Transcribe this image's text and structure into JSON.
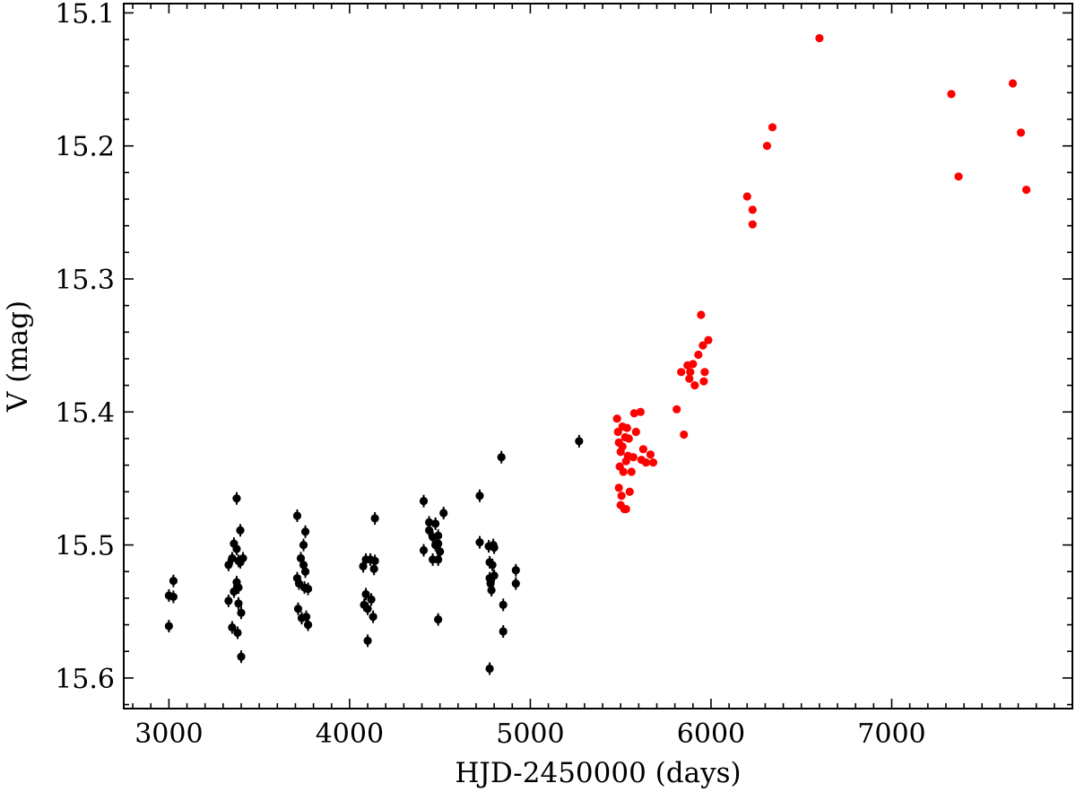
{
  "chart_data": {
    "type": "scatter",
    "xlabel": "HJD-2450000 (days)",
    "ylabel": "V (mag)",
    "xlim": [
      2750,
      8000
    ],
    "ylim": [
      15.623,
      15.093
    ],
    "y_inverted": true,
    "xticks": [
      3000,
      4000,
      5000,
      6000,
      7000
    ],
    "xtick_labels": [
      "3000",
      "4000",
      "5000",
      "6000",
      "7000"
    ],
    "yticks": [
      15.1,
      15.2,
      15.3,
      15.4,
      15.5,
      15.6
    ],
    "ytick_labels": [
      "15.1",
      "15.2",
      "15.3",
      "15.4",
      "15.5",
      "15.6"
    ],
    "grid": false,
    "series": [
      {
        "color": "#000000",
        "points": [
          [
            3000,
            15.538
          ],
          [
            3025,
            15.527
          ],
          [
            3025,
            15.539
          ],
          [
            3000,
            15.561
          ],
          [
            3330,
            15.515
          ],
          [
            3330,
            15.542
          ],
          [
            3350,
            15.51
          ],
          [
            3350,
            15.562
          ],
          [
            3360,
            15.499
          ],
          [
            3360,
            15.535
          ],
          [
            3375,
            15.465
          ],
          [
            3375,
            15.503
          ],
          [
            3375,
            15.528
          ],
          [
            3380,
            15.566
          ],
          [
            3385,
            15.512
          ],
          [
            3385,
            15.532
          ],
          [
            3385,
            15.544
          ],
          [
            3395,
            15.489
          ],
          [
            3395,
            15.513
          ],
          [
            3400,
            15.551
          ],
          [
            3400,
            15.584
          ],
          [
            3410,
            15.51
          ],
          [
            3710,
            15.478
          ],
          [
            3710,
            15.525
          ],
          [
            3715,
            15.548
          ],
          [
            3720,
            15.529
          ],
          [
            3730,
            15.51
          ],
          [
            3735,
            15.555
          ],
          [
            3745,
            15.5
          ],
          [
            3745,
            15.515
          ],
          [
            3750,
            15.532
          ],
          [
            3755,
            15.49
          ],
          [
            3755,
            15.52
          ],
          [
            3760,
            15.554
          ],
          [
            3770,
            15.56
          ],
          [
            3770,
            15.533
          ],
          [
            4075,
            15.516
          ],
          [
            4080,
            15.545
          ],
          [
            4090,
            15.511
          ],
          [
            4090,
            15.537
          ],
          [
            4100,
            15.572
          ],
          [
            4100,
            15.548
          ],
          [
            4115,
            15.511
          ],
          [
            4120,
            15.541
          ],
          [
            4130,
            15.554
          ],
          [
            4135,
            15.518
          ],
          [
            4140,
            15.512
          ],
          [
            4140,
            15.48
          ],
          [
            4410,
            15.467
          ],
          [
            4410,
            15.504
          ],
          [
            4440,
            15.483
          ],
          [
            4440,
            15.489
          ],
          [
            4460,
            15.494
          ],
          [
            4460,
            15.511
          ],
          [
            4475,
            15.484
          ],
          [
            4475,
            15.5
          ],
          [
            4490,
            15.511
          ],
          [
            4490,
            15.493
          ],
          [
            4490,
            15.499
          ],
          [
            4500,
            15.505
          ],
          [
            4490,
            15.556
          ],
          [
            4520,
            15.476
          ],
          [
            4720,
            15.463
          ],
          [
            4720,
            15.498
          ],
          [
            4770,
            15.501
          ],
          [
            4775,
            15.513
          ],
          [
            4775,
            15.525
          ],
          [
            4780,
            15.529
          ],
          [
            4785,
            15.534
          ],
          [
            4790,
            15.515
          ],
          [
            4795,
            15.5
          ],
          [
            4800,
            15.502
          ],
          [
            4800,
            15.523
          ],
          [
            4775,
            15.593
          ],
          [
            4840,
            15.434
          ],
          [
            4850,
            15.545
          ],
          [
            4850,
            15.565
          ],
          [
            4920,
            15.519
          ],
          [
            4920,
            15.529
          ],
          [
            5270,
            15.422
          ]
        ]
      },
      {
        "color": "#ff0000",
        "points": [
          [
            5480,
            15.405
          ],
          [
            5485,
            15.415
          ],
          [
            5490,
            15.423
          ],
          [
            5490,
            15.457
          ],
          [
            5495,
            15.441
          ],
          [
            5500,
            15.43
          ],
          [
            5500,
            15.47
          ],
          [
            5505,
            15.463
          ],
          [
            5510,
            15.411
          ],
          [
            5510,
            15.426
          ],
          [
            5515,
            15.445
          ],
          [
            5520,
            15.473
          ],
          [
            5525,
            15.419
          ],
          [
            5530,
            15.437
          ],
          [
            5530,
            15.473
          ],
          [
            5535,
            15.412
          ],
          [
            5540,
            15.433
          ],
          [
            5545,
            15.42
          ],
          [
            5550,
            15.46
          ],
          [
            5560,
            15.445
          ],
          [
            5570,
            15.434
          ],
          [
            5575,
            15.401
          ],
          [
            5585,
            15.415
          ],
          [
            5610,
            15.4
          ],
          [
            5615,
            15.436
          ],
          [
            5625,
            15.428
          ],
          [
            5640,
            15.438
          ],
          [
            5665,
            15.432
          ],
          [
            5680,
            15.438
          ],
          [
            5810,
            15.398
          ],
          [
            5835,
            15.37
          ],
          [
            5850,
            15.417
          ],
          [
            5870,
            15.365
          ],
          [
            5880,
            15.375
          ],
          [
            5885,
            15.37
          ],
          [
            5900,
            15.364
          ],
          [
            5910,
            15.38
          ],
          [
            5930,
            15.357
          ],
          [
            5945,
            15.327
          ],
          [
            5955,
            15.35
          ],
          [
            5960,
            15.377
          ],
          [
            5965,
            15.37
          ],
          [
            5985,
            15.346
          ],
          [
            6200,
            15.238
          ],
          [
            6230,
            15.248
          ],
          [
            6230,
            15.259
          ],
          [
            6310,
            15.2
          ],
          [
            6340,
            15.186
          ],
          [
            6600,
            15.119
          ],
          [
            7330,
            15.161
          ],
          [
            7370,
            15.223
          ],
          [
            7670,
            15.153
          ],
          [
            7715,
            15.19
          ],
          [
            7745,
            15.233
          ]
        ]
      }
    ]
  }
}
